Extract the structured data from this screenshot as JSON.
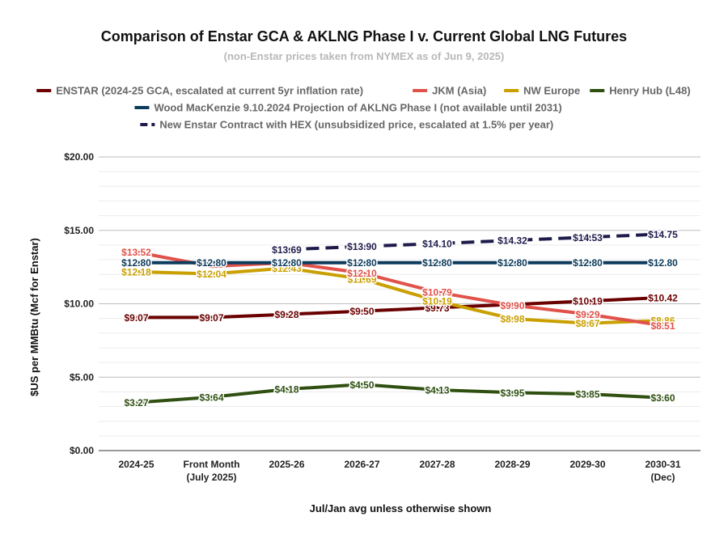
{
  "chart_data": {
    "type": "line",
    "title": "Comparison of Enstar GCA & AKLNG Phase I v. Current Global LNG Futures",
    "subtitle": "(non-Enstar prices taken from NYMEX as of Jun 9, 2025)",
    "xlabel": "Jul/Jan avg unless otherwise shown",
    "ylabel": "$US per MMBtu (Mcf for Enstar)",
    "ylim": [
      0,
      20
    ],
    "yticks": [
      "$0.00",
      "$5.00",
      "$10.00",
      "$15.00",
      "$20.00"
    ],
    "ytick_values": [
      0,
      5,
      10,
      15,
      20
    ],
    "grid": true,
    "legend_position": "top",
    "categories": [
      [
        "2024-25"
      ],
      [
        "Front Month",
        "(July 2025)"
      ],
      [
        "2025-26"
      ],
      [
        "2026-27"
      ],
      [
        "2027-28"
      ],
      [
        "2028-29"
      ],
      [
        "2029-30"
      ],
      [
        "2030-31",
        "(Dec)"
      ]
    ],
    "series": [
      {
        "name": "ENSTAR (2024-25 GCA, escalated at current 5yr inflation rate)",
        "color": "#6b0000",
        "dashed": false,
        "values": [
          9.07,
          9.07,
          9.28,
          9.5,
          9.73,
          9.95,
          10.19,
          10.42
        ],
        "labels": [
          "$9.07",
          "$9.07",
          "$9.28",
          "$9.50",
          "$9.73",
          "",
          "$10.19",
          "$10.42"
        ]
      },
      {
        "name": "JKM (Asia)",
        "color": "#e0524a",
        "dashed": false,
        "values": [
          13.52,
          12.55,
          12.8,
          12.1,
          10.79,
          9.9,
          9.29,
          8.51
        ],
        "labels": [
          "$13.52",
          "",
          "",
          "$12.10",
          "$10.79",
          "$9.90",
          "$9.29",
          "$8.51"
        ]
      },
      {
        "name": "NW Europe",
        "color": "#c9a000",
        "dashed": false,
        "values": [
          12.18,
          12.04,
          12.43,
          11.69,
          10.19,
          8.98,
          8.67,
          8.86
        ],
        "labels": [
          "$12.18",
          "$12.04",
          "$12.43",
          "$11.69",
          "$10.19",
          "$8.98",
          "$8.67",
          "$8.86"
        ]
      },
      {
        "name": "Henry Hub (L48)",
        "color": "#2f5011",
        "dashed": false,
        "values": [
          3.27,
          3.64,
          4.18,
          4.5,
          4.13,
          3.95,
          3.85,
          3.6
        ],
        "labels": [
          "$3.27",
          "$3.64",
          "$4.18",
          "$4.50",
          "$4.13",
          "$3.95",
          "$3.85",
          "$3.60"
        ]
      },
      {
        "name": "Wood MacKenzie 9.10.2024 Projection of AKLNG Phase I (not available until 2031)",
        "color": "#0d3b5c",
        "dashed": false,
        "values": [
          12.8,
          12.8,
          12.8,
          12.8,
          12.8,
          12.8,
          12.8,
          12.8
        ],
        "labels": [
          "$12.80",
          "$12.80",
          "$12.80",
          "$12.80",
          "$12.80",
          "$12.80",
          "$12.80",
          "$12.80"
        ]
      },
      {
        "name": "New Enstar Contract with HEX (unsubsidized price, escalated at 1.5% per year)",
        "color": "#1e1b4b",
        "dashed": true,
        "values": [
          null,
          null,
          13.69,
          13.9,
          14.1,
          14.32,
          14.53,
          14.75
        ],
        "labels": [
          "",
          "",
          "$13.69",
          "$13.90",
          "$14.10",
          "$14.32",
          "$14.53",
          "$14.75"
        ]
      }
    ]
  }
}
